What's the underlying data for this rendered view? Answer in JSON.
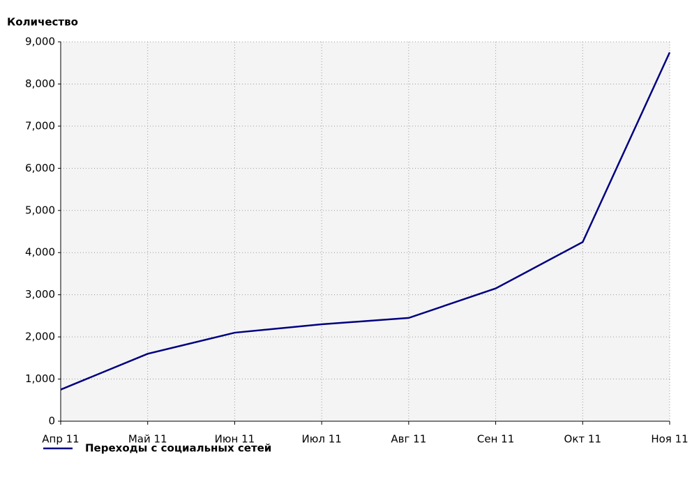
{
  "chart_data": {
    "type": "line",
    "ylabel": "Количество",
    "categories": [
      "Апр 11",
      "Май 11",
      "Июн 11",
      "Июл 11",
      "Авг 11",
      "Сен 11",
      "Окт 11",
      "Ноя 11"
    ],
    "series": [
      {
        "name": "Переходы с социальных сетей",
        "color": "#000080",
        "values": [
          750,
          1600,
          2100,
          2300,
          2450,
          3150,
          4250,
          8750
        ]
      }
    ],
    "ylim": [
      0,
      9000
    ],
    "yticks": [
      0,
      {
        "value": 1000,
        "label": "1,000"
      },
      {
        "value": 2000,
        "label": "2,000"
      },
      {
        "value": 3000,
        "label": "3,000"
      },
      {
        "value": 4000,
        "label": "4,000"
      },
      {
        "value": 5000,
        "label": "5,000"
      },
      {
        "value": 6000,
        "label": "6,000"
      },
      {
        "value": 7000,
        "label": "7,000"
      },
      {
        "value": 8000,
        "label": "8,000"
      },
      {
        "value": 9000,
        "label": "9,000"
      }
    ],
    "grid": true
  }
}
